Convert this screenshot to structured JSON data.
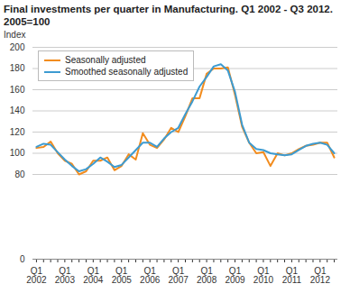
{
  "chart_data": {
    "type": "line",
    "title": "Final investments per quarter in Manufacturing. Q1 2002 - Q3 2012. 2005=100",
    "ylabel": "Index",
    "categories": [
      "Q1 2002",
      null,
      null,
      null,
      "Q1 2003",
      null,
      null,
      null,
      "Q1 2004",
      null,
      null,
      null,
      "Q1 2005",
      null,
      null,
      null,
      "Q1 2006",
      null,
      null,
      null,
      "Q1 2007",
      null,
      null,
      null,
      "Q1 2008",
      null,
      null,
      null,
      "Q1 2009",
      null,
      null,
      null,
      "Q1 2010",
      null,
      null,
      null,
      "Q1 2011",
      null,
      null,
      null,
      "Q1 2012",
      null,
      null
    ],
    "series": [
      {
        "name": "Seasonally adjusted",
        "color": "#f28c1e",
        "values": [
          105,
          106,
          111,
          100,
          93,
          90,
          80,
          83,
          93,
          93,
          96,
          84,
          88,
          99,
          94,
          119,
          108,
          105,
          113,
          124,
          120,
          135,
          152,
          152,
          175,
          180,
          180,
          181,
          155,
          125,
          110,
          100,
          101,
          88,
          100,
          98,
          100,
          104,
          107,
          108,
          110,
          110,
          96
        ]
      },
      {
        "name": "Smoothed seasonally adjusted",
        "color": "#3d9bd1",
        "values": [
          106,
          109,
          108,
          101,
          94,
          88,
          83,
          85,
          90,
          96,
          92,
          87,
          89,
          96,
          103,
          110,
          110,
          106,
          114,
          120,
          124,
          137,
          149,
          163,
          172,
          182,
          184,
          178,
          158,
          127,
          110,
          104,
          103,
          100,
          99,
          98,
          99,
          103,
          107,
          109,
          110,
          108,
          100
        ]
      }
    ],
    "ylim": [
      0,
      200
    ],
    "yticks": [
      0,
      80,
      100,
      120,
      140,
      160,
      180,
      200
    ],
    "grid": true,
    "legend": "upper left"
  }
}
